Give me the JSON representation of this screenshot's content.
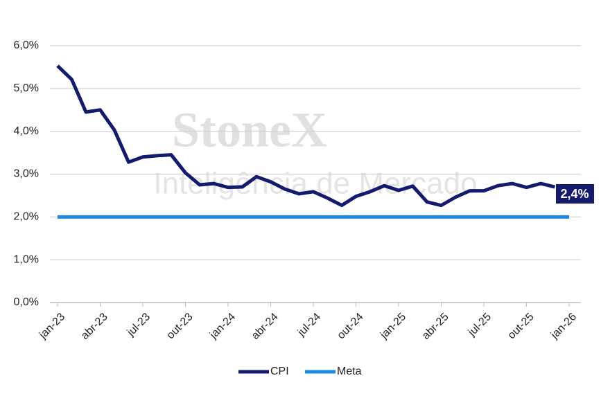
{
  "chart_data": {
    "type": "line",
    "watermark": [
      "StoneX",
      "Inteligência de Mercado"
    ],
    "categories": [
      "jan-23",
      null,
      null,
      "abr-23",
      null,
      null,
      "jul-23",
      null,
      null,
      "out-23",
      null,
      null,
      "jan-24",
      null,
      null,
      "abr-24",
      null,
      null,
      "jul-24",
      null,
      null,
      "out-24",
      null,
      null,
      "jan-25",
      null,
      null,
      "abr-25",
      null,
      null,
      "jul-25",
      null,
      null,
      "out-25",
      null,
      null,
      "jan-26"
    ],
    "series": [
      {
        "name": "CPI",
        "color": "#141a6e",
        "values": [
          5.53,
          5.21,
          4.45,
          4.5,
          4.03,
          3.28,
          3.4,
          3.43,
          3.45,
          3.03,
          2.75,
          2.78,
          2.69,
          2.7,
          2.94,
          2.82,
          2.65,
          2.54,
          2.59,
          2.44,
          2.27,
          2.48,
          2.59,
          2.73,
          2.62,
          2.72,
          2.35,
          2.27,
          2.46,
          2.61,
          2.61,
          2.73,
          2.78,
          2.69,
          2.78,
          2.7,
          null
        ]
      },
      {
        "name": "Meta",
        "color": "#1e88e5",
        "values": [
          2,
          2,
          2,
          2,
          2,
          2,
          2,
          2,
          2,
          2,
          2,
          2,
          2,
          2,
          2,
          2,
          2,
          2,
          2,
          2,
          2,
          2,
          2,
          2,
          2,
          2,
          2,
          2,
          2,
          2,
          2,
          2,
          2,
          2,
          2,
          2,
          2
        ]
      }
    ],
    "annotation": "2,4%",
    "ylim": [
      0,
      6
    ],
    "yticks": [
      {
        "value": 0,
        "label": "0,0%"
      },
      {
        "value": 1,
        "label": "1,0%"
      },
      {
        "value": 2,
        "label": "2,0%"
      },
      {
        "value": 3,
        "label": "3,0%"
      },
      {
        "value": 4,
        "label": "4,0%"
      },
      {
        "value": 5,
        "label": "5,0%"
      },
      {
        "value": 6,
        "label": "6,0%"
      }
    ],
    "grid": true,
    "legend": "bottom"
  }
}
